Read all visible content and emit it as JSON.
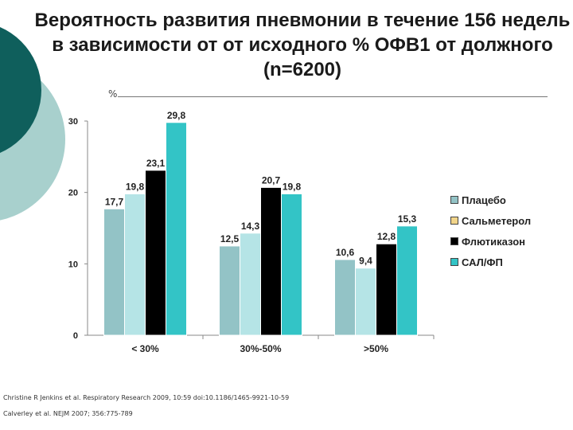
{
  "title": "Вероятность развития пневмонии в течение 156 недель в зависимости от от исходного % ОФВ1 от должного (n=6200)",
  "colors": {
    "background_dark": "#0f5f5c",
    "background_light": "#a8d0cd",
    "series": [
      "#93c3c6",
      "#b5e4e6",
      "#000000",
      "#33c4c6"
    ]
  },
  "chart_data": {
    "type": "bar",
    "ylabel": "%",
    "ylim": [
      0,
      30
    ],
    "yticks": [
      "0",
      "10",
      "20",
      "30"
    ],
    "categories": [
      "< 30%",
      "30%-50%",
      ">50%"
    ],
    "series": [
      {
        "name": "Плацебо",
        "values": [
          17.7,
          12.5,
          10.6
        ],
        "labels": [
          "17,7",
          "12,5",
          "10,6"
        ]
      },
      {
        "name": "Сальметерол",
        "values": [
          19.8,
          14.3,
          9.4
        ],
        "labels": [
          "19,8",
          "14,3",
          "9,4"
        ]
      },
      {
        "name": "Флютиказон",
        "values": [
          23.1,
          20.7,
          12.8
        ],
        "labels": [
          "23,1",
          "20,7",
          "12,8"
        ]
      },
      {
        "name": "САЛ/ФП",
        "values": [
          29.8,
          19.8,
          15.3
        ],
        "labels": [
          "29,8",
          "19,8",
          "15,3"
        ]
      }
    ]
  },
  "references": [
    "Christine R Jenkins et al. Respiratory Research 2009, 10:59 doi:10.1186/1465-9921-10-59",
    "Calverley et al. NEJM 2007; 356:775-789"
  ]
}
